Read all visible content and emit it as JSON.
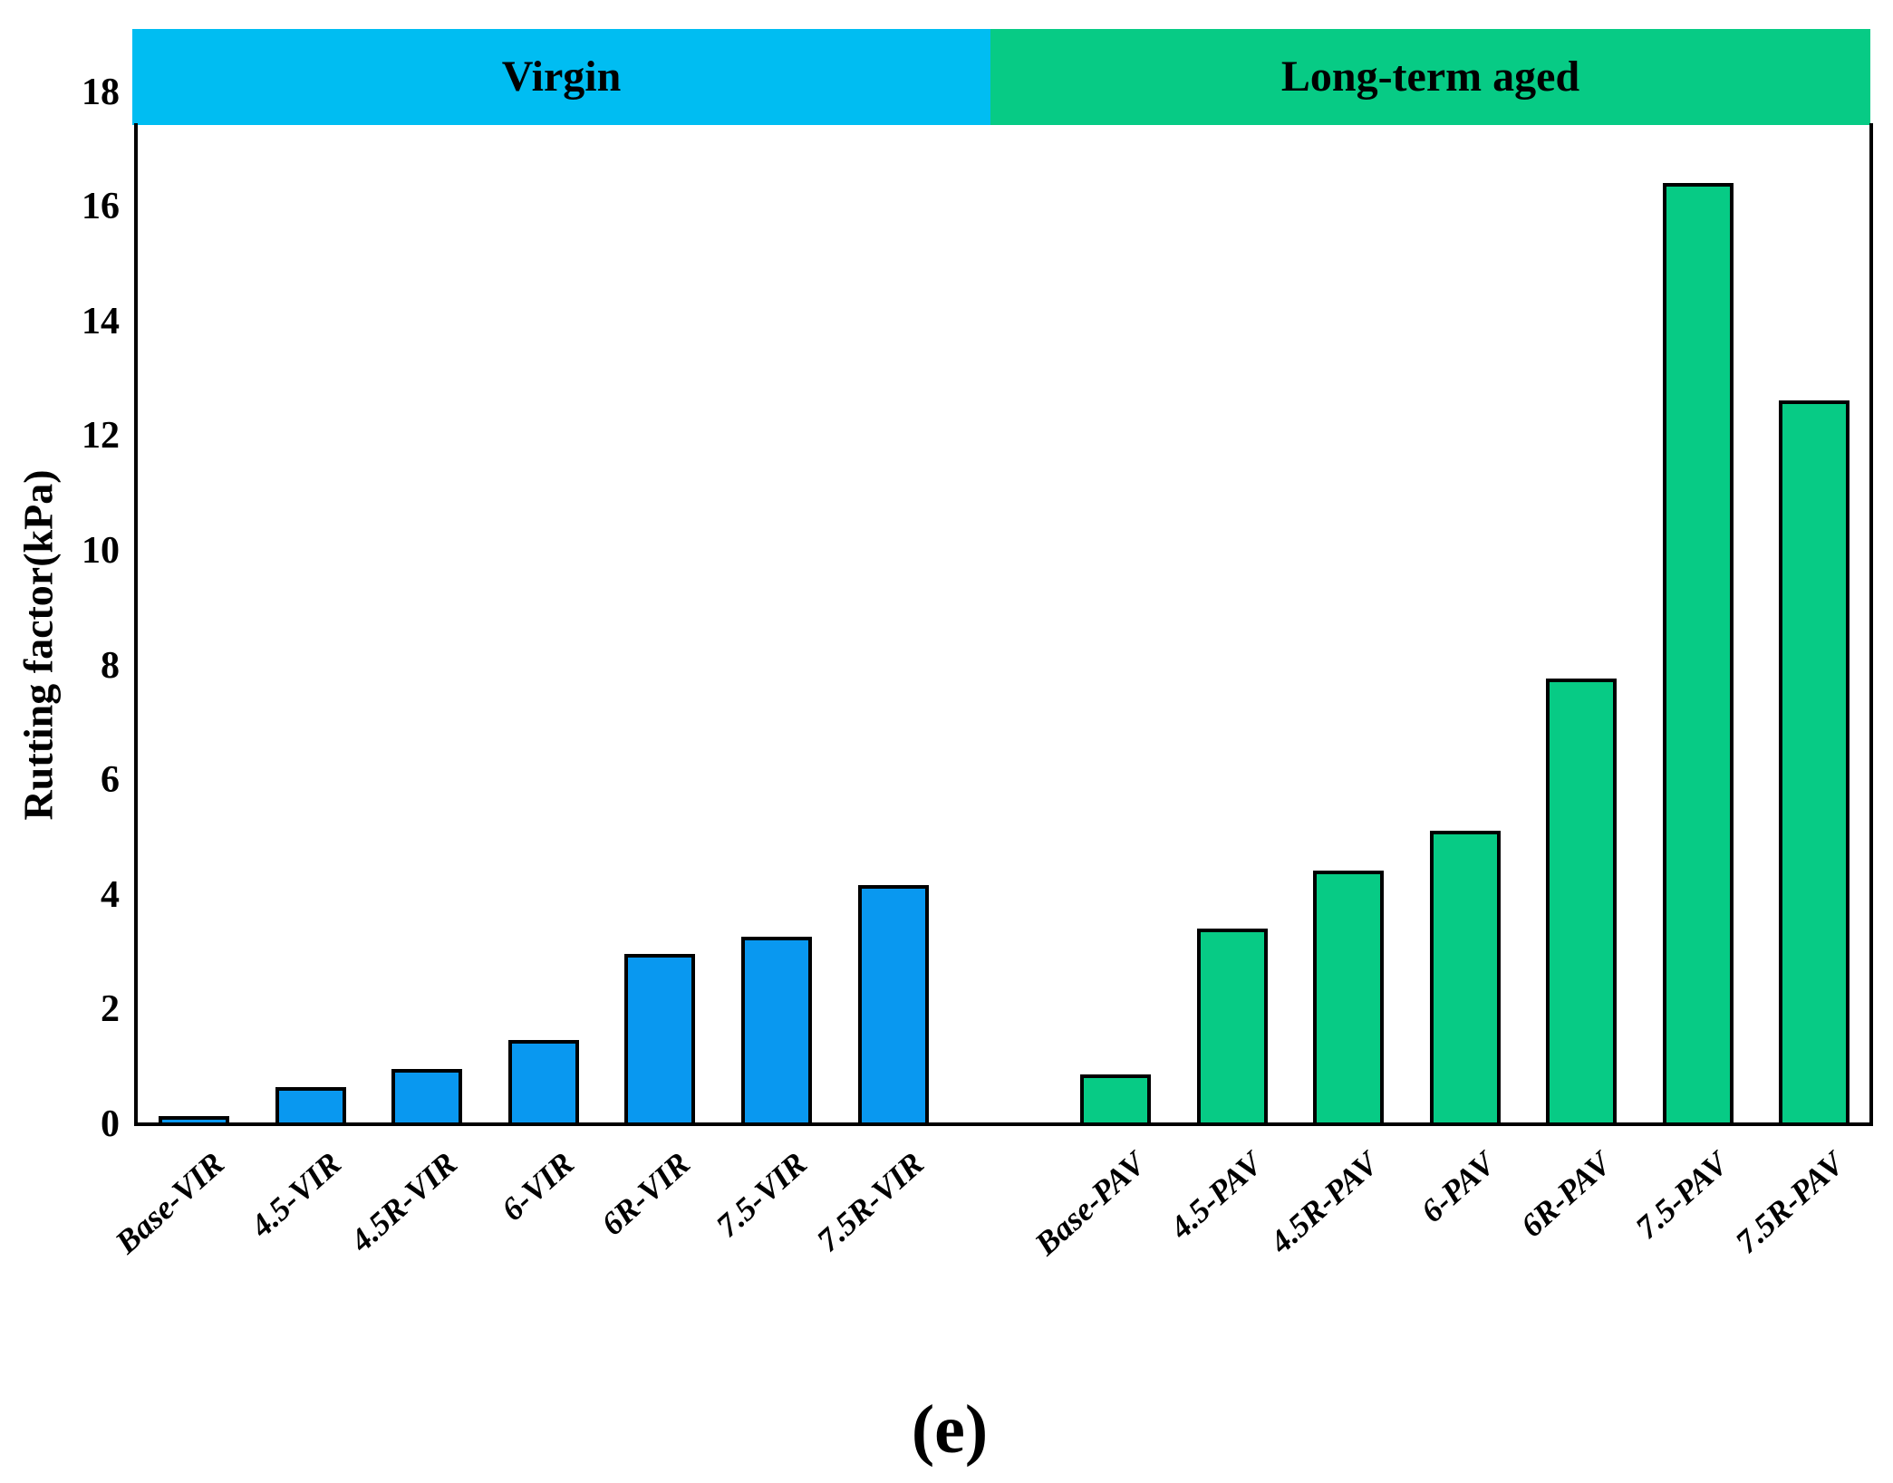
{
  "chart_data": {
    "type": "bar",
    "title": "",
    "xlabel": "",
    "ylabel": "Rutting factor(kPa)",
    "caption": "(e)",
    "ylim": [
      0,
      18
    ],
    "yticks": [
      0,
      2,
      4,
      6,
      8,
      10,
      12,
      14,
      16,
      18
    ],
    "grid": false,
    "legend_position": "none",
    "categories": [
      "Base-VIR",
      "4.5-VIR",
      "4.5R-VIR",
      "6-VIR",
      "6R-VIR",
      "7.5-VIR",
      "7.5R-VIR",
      "Base-PAV",
      "4.5-PAV",
      "4.5R-PAV",
      "6-PAV",
      "6R-PAV",
      "7.5-PAV",
      "7.5R-PAV"
    ],
    "values": [
      0.18,
      0.68,
      1.0,
      1.5,
      3.0,
      3.3,
      4.2,
      0.9,
      3.45,
      4.45,
      5.15,
      7.8,
      16.45,
      12.65
    ],
    "groups": [
      {
        "label": "Virgin",
        "band_color": "#00bdf2",
        "bar_color": "#0998f0",
        "categories": [
          "Base-VIR",
          "4.5-VIR",
          "4.5R-VIR",
          "6-VIR",
          "6R-VIR",
          "7.5-VIR",
          "7.5R-VIR"
        ],
        "values": [
          0.18,
          0.68,
          1.0,
          1.5,
          3.0,
          3.3,
          4.2
        ]
      },
      {
        "label": "Long-term aged",
        "band_color": "#07cb85",
        "bar_color": "#07cb85",
        "categories": [
          "Base-PAV",
          "4.5-PAV",
          "4.5R-PAV",
          "6-PAV",
          "6R-PAV",
          "7.5-PAV",
          "7.5R-PAV"
        ],
        "values": [
          0.9,
          3.45,
          4.45,
          5.15,
          7.8,
          16.45,
          12.65
        ]
      }
    ],
    "colors": {
      "axis": "#000000",
      "text": "#000000",
      "background": "#ffffff"
    }
  }
}
